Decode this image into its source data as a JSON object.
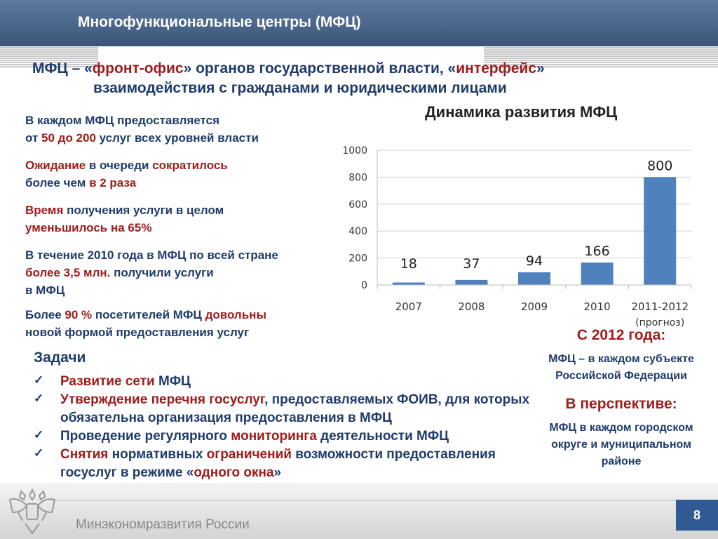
{
  "header": {
    "title": "Многофункциональные центры  (МФЦ)"
  },
  "subtitle": {
    "p1": "МФЦ – «",
    "p2": "фронт-офис",
    "p3": "» органов государственной власти, «",
    "p4": "интерфейс",
    "p5": "»",
    "line2": "взаимодействия с гражданами и юридическими лицами"
  },
  "facts": {
    "f1": {
      "a": "В каждом МФЦ предоставляется",
      "b": "от ",
      "c": "50 до 200",
      "d": " услуг всех уровней власти"
    },
    "f2": {
      "a": "Ожидание",
      "b": " в очереди ",
      "c": "сократилось",
      "d": "более чем ",
      "e": "в 2 раза"
    },
    "f3": {
      "a": "Время",
      "b": " получения услуги в целом",
      "c": "уменьшилось на 65%"
    },
    "f4": {
      "a": "В течение 2010 года в МФЦ по всей стране",
      "b": "более 3,5 млн.",
      "c": " получили услуги",
      "d": "в МФЦ"
    },
    "f5": {
      "a": "Более ",
      "b": "90 %",
      "c": " посетителей МФЦ ",
      "d": "довольны",
      "e": "новой формой предоставления услуг"
    }
  },
  "chart_data": {
    "type": "bar",
    "title": "Динамика развития МФЦ",
    "categories": [
      "2007",
      "2008",
      "2009",
      "2010",
      "2011-2012"
    ],
    "category_note": "(прогноз)",
    "values": [
      18,
      37,
      94,
      166,
      800
    ],
    "data_labels": [
      "18",
      "37",
      "94",
      "166",
      "800"
    ],
    "yticks": [
      "0",
      "200",
      "400",
      "600",
      "800",
      "1000"
    ],
    "ylim": [
      0,
      1000
    ],
    "xlabel": "",
    "ylabel": "",
    "grid": true,
    "bar_color": "#4f81bd"
  },
  "tasks": {
    "heading": "Задачи",
    "t1": {
      "a": "Развитие сети",
      "b": " МФЦ"
    },
    "t2": {
      "a": "Утверждение перечня госуслуг",
      "b": ", предоставляемых ФОИВ, для которых обязательна организация предоставления в МФЦ"
    },
    "t3": {
      "a": "Проведение регулярного ",
      "b": "мониторинга",
      "c": " деятельности МФЦ"
    },
    "t4": {
      "a": "Снятия",
      "b": " нормативных ",
      "c": "ограничений",
      "d": " возможности предоставления госуслуг в режиме «",
      "e": "одного окна",
      "f": "»"
    }
  },
  "right": {
    "h1": "С 2012 года:",
    "b1": "МФЦ – в каждом субъекте Российской Федерации",
    "h2": "В перспективе:",
    "b2": "МФЦ в каждом городском округе и муниципальном районе"
  },
  "footer": {
    "ministry": "Минэкономразвития России",
    "page": "8"
  }
}
